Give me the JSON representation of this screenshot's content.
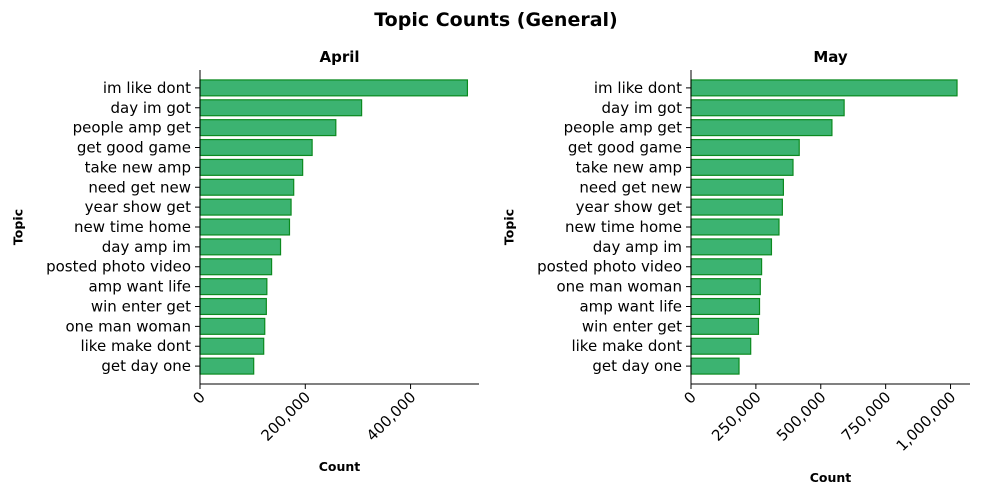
{
  "figure": {
    "title": "Topic Counts (General)"
  },
  "chart_data": [
    {
      "type": "bar",
      "orientation": "horizontal",
      "title": "April",
      "xlabel": "Count",
      "ylabel": "Topic",
      "xlim": [
        0,
        530000
      ],
      "xticks": [
        0,
        200000,
        400000
      ],
      "xtick_labels": [
        "0",
        "200,000",
        "400,000"
      ],
      "categories": [
        "im like dont",
        "day im got",
        "people amp get",
        "get good game",
        "take new amp",
        "need get new",
        "year show get",
        "new time home",
        "day amp im",
        "posted photo video",
        "amp want life",
        "win enter get",
        "one man woman",
        "like make dont",
        "get day one"
      ],
      "values": [
        508000,
        307000,
        258000,
        213000,
        195000,
        178000,
        173000,
        170000,
        153000,
        136000,
        127000,
        126000,
        123000,
        121000,
        102000
      ],
      "bar_color": "#3cb371",
      "edge_color": "#0b8a1f",
      "grid": false,
      "legend": "none"
    },
    {
      "type": "bar",
      "orientation": "horizontal",
      "title": "May",
      "xlabel": "Count",
      "ylabel": "Topic",
      "xlim": [
        0,
        1075000
      ],
      "xticks": [
        0,
        250000,
        500000,
        750000,
        1000000
      ],
      "xtick_labels": [
        "0",
        "250,000",
        "500,000",
        "750,000",
        "1,000,000"
      ],
      "categories": [
        "im like dont",
        "day im got",
        "people amp get",
        "get good game",
        "take new amp",
        "need get new",
        "year show get",
        "new time home",
        "day amp im",
        "posted photo video",
        "one man woman",
        "amp want life",
        "win enter get",
        "like make dont",
        "get day one"
      ],
      "values": [
        1025000,
        590000,
        543000,
        417000,
        393000,
        356000,
        352000,
        339000,
        310000,
        272000,
        267000,
        264000,
        260000,
        230000,
        185000
      ],
      "bar_color": "#3cb371",
      "edge_color": "#0b8a1f",
      "grid": false,
      "legend": "none"
    }
  ]
}
